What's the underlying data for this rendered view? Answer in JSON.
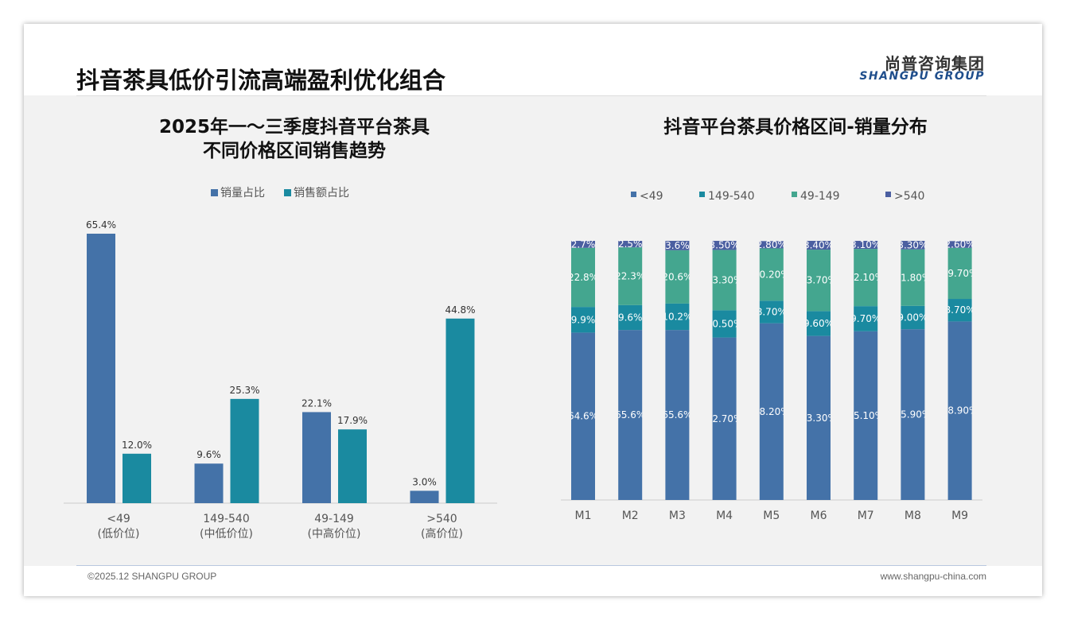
{
  "header": {
    "title": "抖音茶具低价引流高端盈利优化组合",
    "logo_cn": "尚普咨询集团",
    "logo_en": "SHANGPU GROUP"
  },
  "footer": {
    "copyright": "©2025.12 SHANGPU GROUP",
    "website": "www.shangpu-china.com"
  },
  "colors": {
    "s1": "#4472a8",
    "s2": "#1a8aa0",
    "s3": "#44a68f",
    "s4": "#4b5fa1"
  },
  "chart_data": [
    {
      "type": "bar",
      "title": "2025年一～三季度抖音平台茶具\n不同价格区间销售趋势",
      "title_line1": "2025年一～三季度抖音平台茶具",
      "title_line2": "不同价格区间销售趋势",
      "categories": [
        "<49",
        "149-540",
        "49-149",
        ">540"
      ],
      "category_sub": [
        "(低价位)",
        "(中低价位)",
        "(中高价位)",
        "(高价位)"
      ],
      "series": [
        {
          "name": "销量占比",
          "values": [
            65.4,
            9.6,
            22.1,
            3.0
          ],
          "labels": [
            "65.4%",
            "9.6%",
            "22.1%",
            "3.0%"
          ]
        },
        {
          "name": "销售额占比",
          "values": [
            12.0,
            25.3,
            17.9,
            44.8
          ],
          "labels": [
            "12.0%",
            "25.3%",
            "17.9%",
            "44.8%"
          ]
        }
      ],
      "ylim": [
        0,
        70
      ],
      "legend": "top"
    },
    {
      "type": "bar",
      "stacked": true,
      "title": "抖音平台茶具价格区间-销量分布",
      "categories": [
        "M1",
        "M2",
        "M3",
        "M4",
        "M5",
        "M6",
        "M7",
        "M8",
        "M9"
      ],
      "series": [
        {
          "name": "<49",
          "values": [
            64.6,
            65.6,
            65.6,
            62.7,
            68.2,
            63.3,
            65.1,
            65.9,
            68.9
          ],
          "labels": [
            "64.6%",
            "65.6%",
            "65.6%",
            "62.70%",
            "68.20%",
            "63.30%",
            "65.10%",
            "65.90%",
            "68.90%"
          ]
        },
        {
          "name": "149-540",
          "values": [
            9.9,
            9.6,
            10.2,
            10.5,
            8.7,
            9.6,
            9.7,
            9.0,
            8.7
          ],
          "labels": [
            "9.9%",
            "9.6%",
            "10.2%",
            "10.50%",
            "8.70%",
            "9.60%",
            "9.70%",
            "9.00%",
            "8.70%"
          ]
        },
        {
          "name": "49-149",
          "values": [
            22.8,
            22.3,
            20.6,
            23.3,
            20.2,
            23.7,
            22.1,
            21.8,
            19.7
          ],
          "labels": [
            "22.8%",
            "22.3%",
            "20.6%",
            "23.30%",
            "20.20%",
            "23.70%",
            "22.10%",
            "21.80%",
            "19.70%"
          ]
        },
        {
          "name": ">540",
          "values": [
            2.7,
            2.5,
            3.6,
            3.5,
            2.8,
            3.4,
            3.1,
            3.3,
            2.6
          ],
          "labels": [
            "2.7%",
            "2.5%",
            "3.6%",
            "3.50%",
            "2.80%",
            "3.40%",
            "3.10%",
            "3.30%",
            "2.60%"
          ]
        }
      ],
      "ylim": [
        0,
        100
      ],
      "legend": "top"
    }
  ]
}
